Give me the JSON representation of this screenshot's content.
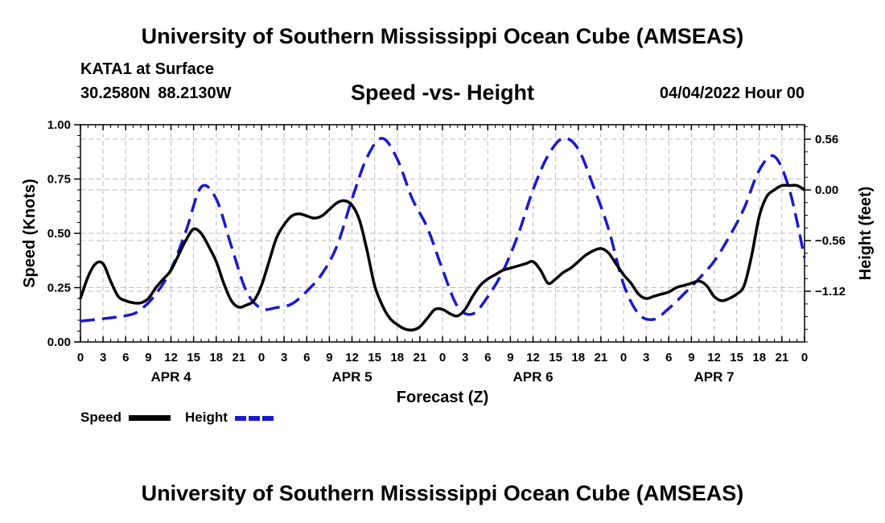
{
  "header": {
    "title": "University of Southern Mississippi Ocean Cube (AMSEAS)",
    "station": "KATA1 at Surface",
    "coordinates": "30.2580N  88.2130W",
    "subtitle": "Speed -vs- Height",
    "datetime": "04/04/2022 Hour 00"
  },
  "footer": {
    "title": "University of Southern Mississippi Ocean Cube (AMSEAS)"
  },
  "legend": {
    "speed_label": "Speed",
    "height_label": "Height"
  },
  "colors": {
    "speed": "#000000",
    "height": "#1a1acc",
    "grid": "#bbbbbb"
  },
  "chart_data": {
    "type": "line",
    "xlabel": "Forecast (Z)",
    "ylabel": "Speed (Knots)",
    "y2label": "Height (feet)",
    "xlim": [
      0,
      96
    ],
    "ylim": [
      0,
      1
    ],
    "y2lim": [
      -1.68,
      0.72
    ],
    "x_tick_labels": [
      "0",
      "3",
      "6",
      "9",
      "12",
      "15",
      "18",
      "21",
      "0",
      "3",
      "6",
      "9",
      "12",
      "15",
      "18",
      "21",
      "0",
      "3",
      "6",
      "9",
      "12",
      "15",
      "18",
      "21",
      "0",
      "3",
      "6",
      "9",
      "12",
      "15",
      "18",
      "21",
      "0"
    ],
    "y_ticks": [
      0,
      0.25,
      0.5,
      0.75,
      1.0
    ],
    "y_tick_labels": [
      "0.00",
      "0.25",
      "0.50",
      "0.75",
      "1.00"
    ],
    "y2_ticks": [
      0.56,
      0.0,
      -0.56,
      -1.12
    ],
    "y2_tick_labels": [
      "0.56",
      "0.00",
      "−0.56",
      "−1.12"
    ],
    "day_labels": [
      {
        "label": "APR 4",
        "hour": 12
      },
      {
        "label": "APR 5",
        "hour": 36
      },
      {
        "label": "APR 6",
        "hour": 60
      },
      {
        "label": "APR 7",
        "hour": 84
      }
    ],
    "series": [
      {
        "name": "Speed",
        "axis": "left",
        "x": [
          0,
          1,
          2,
          3,
          4,
          5,
          6,
          7,
          8,
          9,
          10,
          11,
          12,
          13,
          14,
          15,
          16,
          17,
          18,
          19,
          20,
          21,
          22,
          23,
          24,
          25,
          26,
          27,
          28,
          29,
          30,
          31,
          32,
          33,
          34,
          35,
          36,
          37,
          38,
          39,
          40,
          41,
          42,
          43,
          44,
          45,
          46,
          47,
          48,
          49,
          50,
          51,
          52,
          53,
          54,
          55,
          56,
          57,
          58,
          59,
          60,
          61,
          62,
          63,
          64,
          65,
          66,
          67,
          68,
          69,
          70,
          71,
          72,
          73,
          74,
          75,
          76,
          77,
          78,
          79,
          80,
          81,
          82,
          83,
          84,
          85,
          86,
          87,
          88,
          89,
          90,
          91,
          92,
          93,
          94,
          95,
          96
        ],
        "values": [
          0.2,
          0.3,
          0.36,
          0.36,
          0.28,
          0.21,
          0.19,
          0.18,
          0.18,
          0.2,
          0.25,
          0.29,
          0.33,
          0.4,
          0.47,
          0.52,
          0.5,
          0.44,
          0.37,
          0.27,
          0.19,
          0.16,
          0.17,
          0.19,
          0.26,
          0.37,
          0.48,
          0.54,
          0.58,
          0.59,
          0.58,
          0.57,
          0.58,
          0.61,
          0.64,
          0.65,
          0.63,
          0.56,
          0.42,
          0.26,
          0.17,
          0.11,
          0.08,
          0.06,
          0.055,
          0.07,
          0.11,
          0.15,
          0.15,
          0.13,
          0.12,
          0.15,
          0.21,
          0.26,
          0.29,
          0.31,
          0.33,
          0.34,
          0.35,
          0.36,
          0.37,
          0.33,
          0.27,
          0.29,
          0.32,
          0.34,
          0.37,
          0.4,
          0.42,
          0.43,
          0.41,
          0.36,
          0.31,
          0.27,
          0.22,
          0.2,
          0.21,
          0.22,
          0.23,
          0.25,
          0.26,
          0.27,
          0.28,
          0.26,
          0.21,
          0.19,
          0.2,
          0.22,
          0.26,
          0.4,
          0.58,
          0.67,
          0.7,
          0.72,
          0.72,
          0.72,
          0.7
        ]
      },
      {
        "name": "Height",
        "axis": "right",
        "x": [
          0,
          6,
          8,
          10,
          12,
          14,
          16,
          18,
          20,
          22,
          24,
          26,
          28,
          30,
          32,
          34,
          36,
          38,
          40,
          42,
          44,
          46,
          48,
          50,
          52,
          54,
          56,
          58,
          60,
          62,
          64,
          66,
          68,
          70,
          72,
          74,
          76,
          78,
          80,
          82,
          84,
          86,
          88,
          90,
          92,
          94,
          96
        ],
        "values": [
          -1.45,
          -1.39,
          -1.32,
          -1.15,
          -0.88,
          -0.45,
          0.03,
          -0.1,
          -0.62,
          -1.12,
          -1.31,
          -1.3,
          -1.26,
          -1.12,
          -0.93,
          -0.62,
          -0.1,
          0.36,
          0.57,
          0.34,
          -0.1,
          -0.42,
          -0.88,
          -1.29,
          -1.37,
          -1.18,
          -0.9,
          -0.5,
          0.0,
          0.38,
          0.57,
          0.45,
          0.04,
          -0.43,
          -1.04,
          -1.37,
          -1.43,
          -1.31,
          -1.15,
          -0.98,
          -0.79,
          -0.52,
          -0.2,
          0.22,
          0.37,
          0.0,
          -0.75
        ]
      }
    ]
  }
}
